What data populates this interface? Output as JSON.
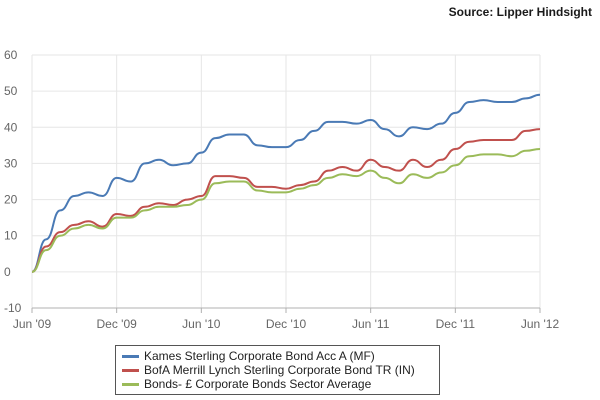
{
  "source": "Source: Lipper Hindsight",
  "chart_data": {
    "type": "line",
    "x": [
      "Jun '09",
      "Jul '09",
      "Aug '09",
      "Sep '09",
      "Oct '09",
      "Nov '09",
      "Dec '09",
      "Jan '10",
      "Feb '10",
      "Mar '10",
      "Apr '10",
      "May '10",
      "Jun '10",
      "Jul '10",
      "Aug '10",
      "Sep '10",
      "Oct '10",
      "Nov '10",
      "Dec '10",
      "Jan '11",
      "Feb '11",
      "Mar '11",
      "Apr '11",
      "May '11",
      "Jun '11",
      "Jul '11",
      "Aug '11",
      "Sep '11",
      "Oct '11",
      "Nov '11",
      "Dec '11",
      "Jan '12",
      "Feb '12",
      "Mar '12",
      "Apr '12",
      "May '12",
      "Jun '12"
    ],
    "x_ticks": [
      "Jun '09",
      "Dec '09",
      "Jun '10",
      "Dec '10",
      "Jun '11",
      "Dec '11",
      "Jun '12"
    ],
    "ylim": [
      -10,
      60
    ],
    "y_ticks": [
      -10,
      0,
      10,
      20,
      30,
      40,
      50,
      60
    ],
    "grid": true,
    "series": [
      {
        "name": "Kames Sterling Corporate Bond Acc A (MF)",
        "color": "#4a7ab5",
        "values": [
          0,
          9,
          17,
          21,
          22,
          21,
          26,
          25,
          30,
          31,
          29.5,
          30,
          33,
          37,
          38,
          38,
          35,
          34.5,
          34.5,
          36.5,
          39,
          41.5,
          41.5,
          41,
          42,
          39.5,
          37.5,
          40,
          39.5,
          41,
          44,
          47,
          47.5,
          47,
          47,
          48,
          49
        ]
      },
      {
        "name": "BofA Merrill Lynch Sterling Corporate Bond TR (IN)",
        "color": "#c0504d",
        "values": [
          0,
          7,
          11,
          13,
          14,
          12.5,
          16,
          15.5,
          18,
          19,
          18.5,
          20,
          21,
          26.5,
          26.5,
          26,
          23.5,
          23.5,
          23,
          24,
          25,
          28,
          29,
          28,
          31,
          29,
          28,
          31,
          29,
          31,
          34,
          36,
          36.5,
          36.5,
          36.5,
          39,
          39.5
        ]
      },
      {
        "name": "Bonds- £ Corporate Bonds Sector Average",
        "color": "#9bbb59",
        "values": [
          0,
          6,
          10,
          12,
          13,
          12,
          15,
          15,
          17,
          18,
          18,
          18.5,
          20,
          24.5,
          25,
          25,
          22.5,
          22,
          22,
          23,
          24,
          26,
          27,
          26.5,
          28,
          26,
          24.5,
          27,
          26,
          27.5,
          29.5,
          32,
          32.5,
          32.5,
          32,
          33.5,
          34
        ]
      }
    ]
  }
}
